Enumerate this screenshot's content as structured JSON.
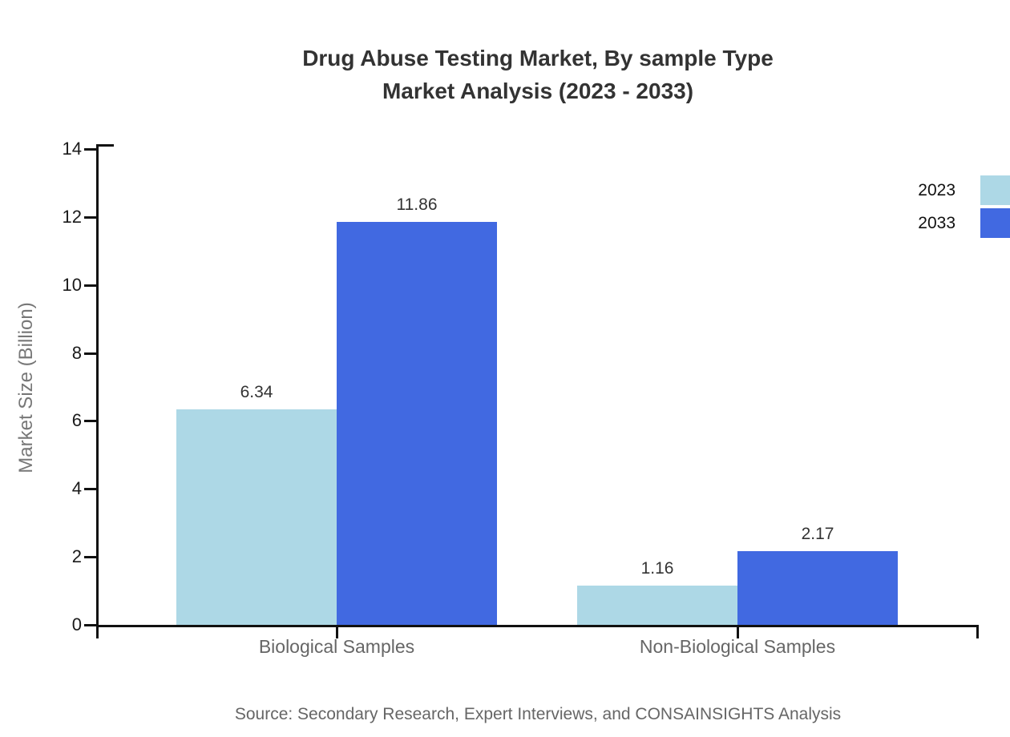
{
  "chart_data": {
    "type": "bar",
    "title": "Drug Abuse Testing Market, By sample Type Market Analysis (2023 - 2033)",
    "title_lines": [
      "Drug Abuse Testing Market, By sample Type",
      "Market Analysis (2023 - 2033)"
    ],
    "categories": [
      "Biological Samples",
      "Non-Biological Samples"
    ],
    "series": [
      {
        "name": "2023",
        "values": [
          6.34,
          1.16
        ],
        "color": "#ADD8E6"
      },
      {
        "name": "2033",
        "values": [
          11.86,
          2.17
        ],
        "color": "#4169E1"
      }
    ],
    "value_labels": [
      "6.34",
      "11.86",
      "1.16",
      "2.17"
    ],
    "xlabel": "",
    "ylabel": "Market Size (Billion)",
    "ylim": [
      0,
      14
    ],
    "yticks": [
      0,
      2,
      4,
      6,
      8,
      10,
      12,
      14
    ],
    "grid": false,
    "legend_position": "top-right",
    "source": "Source: Secondary Research, Expert Interviews, and CONSAINSIGHTS Analysis"
  }
}
